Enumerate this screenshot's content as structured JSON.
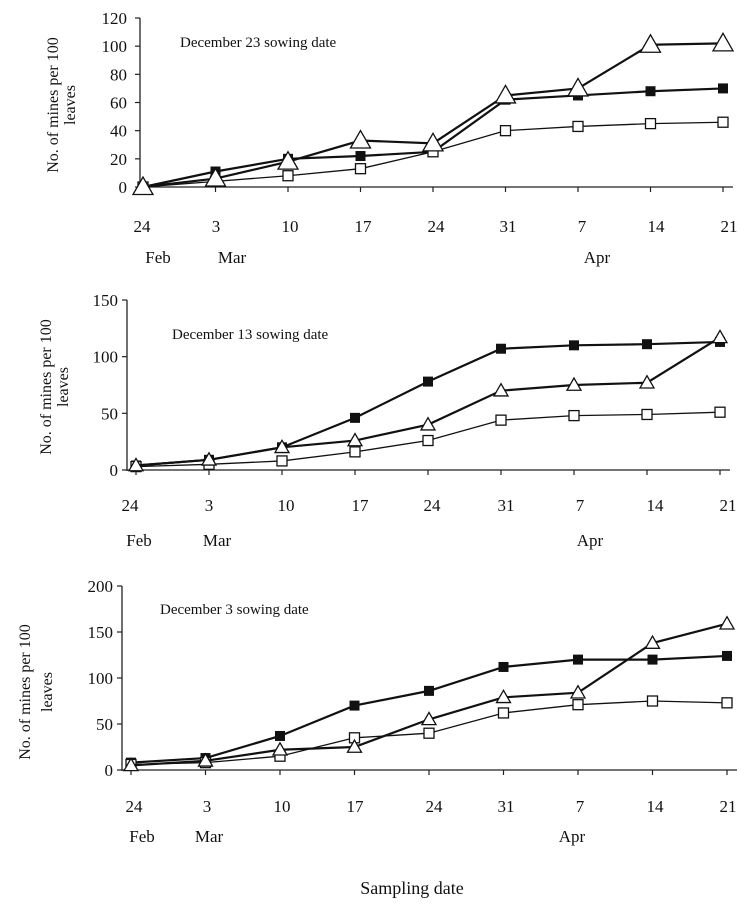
{
  "chart_data": [
    {
      "type": "line",
      "title": "December 23 sowing date",
      "ylabel": "No. of mines per 100 leaves",
      "ylim": [
        0,
        120
      ],
      "yticks": [
        0,
        20,
        40,
        60,
        80,
        100,
        120
      ],
      "categories": [
        "24",
        "3",
        "10",
        "17",
        "24",
        "31",
        "7",
        "14",
        "21"
      ],
      "month_labels": [
        {
          "index": 0,
          "text": "Feb"
        },
        {
          "index": 1,
          "text": "Mar"
        },
        {
          "index": 6,
          "text": "Apr"
        }
      ],
      "series": [
        {
          "marker": "filled-square",
          "values": [
            0,
            11,
            20,
            22,
            25,
            62,
            65,
            68,
            70
          ]
        },
        {
          "marker": "open-square",
          "values": [
            0,
            4,
            8,
            13,
            25,
            40,
            43,
            45,
            46
          ]
        },
        {
          "marker": "open-triangle",
          "values": [
            0,
            6,
            18,
            33,
            31,
            65,
            70,
            101,
            102
          ]
        }
      ]
    },
    {
      "type": "line",
      "title": "December 13 sowing date",
      "ylabel": "No. of mines per 100 leaves",
      "ylim": [
        0,
        150
      ],
      "yticks": [
        0,
        50,
        100,
        150
      ],
      "categories": [
        "24",
        "3",
        "10",
        "17",
        "24",
        "31",
        "7",
        "14",
        "21"
      ],
      "month_labels": [
        {
          "index": 0,
          "text": "Feb"
        },
        {
          "index": 1,
          "text": "Mar"
        },
        {
          "index": 6,
          "text": "Apr"
        }
      ],
      "series": [
        {
          "marker": "filled-square",
          "values": [
            4,
            9,
            20,
            46,
            78,
            107,
            110,
            111,
            113
          ]
        },
        {
          "marker": "open-square",
          "values": [
            3,
            5,
            8,
            16,
            26,
            44,
            48,
            49,
            51
          ]
        },
        {
          "marker": "open-triangle",
          "values": [
            4,
            9,
            20,
            26,
            40,
            70,
            75,
            77,
            117
          ]
        }
      ]
    },
    {
      "type": "line",
      "title": "December 3 sowing date",
      "ylabel": "No. of mines per 100 leaves",
      "xlabel": "Sampling date",
      "ylim": [
        0,
        200
      ],
      "yticks": [
        0,
        50,
        100,
        150,
        200
      ],
      "categories": [
        "24",
        "3",
        "10",
        "17",
        "24",
        "31",
        "7",
        "14",
        "21"
      ],
      "month_labels": [
        {
          "index": 0,
          "text": "Feb"
        },
        {
          "index": 1,
          "text": "Mar"
        },
        {
          "index": 6,
          "text": "Apr"
        }
      ],
      "series": [
        {
          "marker": "filled-square",
          "values": [
            8,
            13,
            37,
            70,
            86,
            112,
            120,
            120,
            124
          ]
        },
        {
          "marker": "open-square",
          "values": [
            6,
            8,
            15,
            35,
            40,
            62,
            71,
            75,
            73
          ]
        },
        {
          "marker": "open-triangle",
          "values": [
            5,
            10,
            22,
            25,
            55,
            79,
            84,
            138,
            159
          ]
        }
      ]
    }
  ]
}
